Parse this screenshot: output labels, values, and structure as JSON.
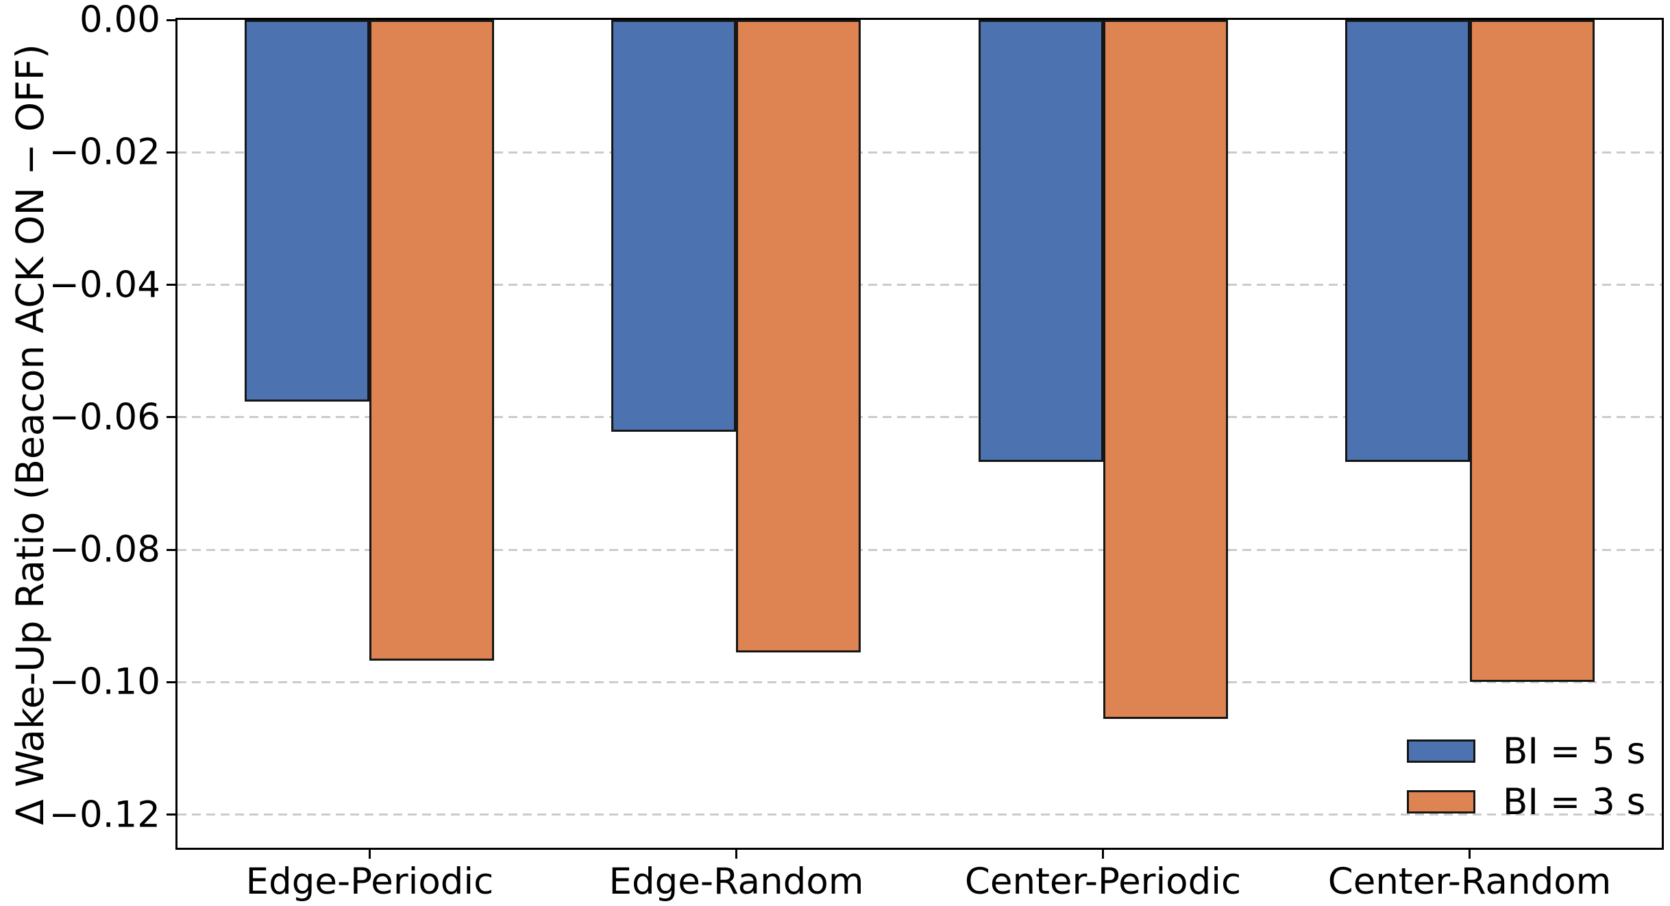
{
  "chart_data": {
    "type": "bar",
    "title": "",
    "xlabel": "",
    "ylabel": "Δ Wake-Up Ratio (Beacon ACK ON − OFF)",
    "categories": [
      "Edge-Periodic",
      "Edge-Random",
      "Center-Periodic",
      "Center-Random"
    ],
    "series": [
      {
        "name": "BI = 5 s",
        "color": "#4C72B0",
        "values": [
          -0.0576,
          -0.0622,
          -0.0667,
          -0.0667
        ]
      },
      {
        "name": "BI = 3 s",
        "color": "#DD8452",
        "values": [
          -0.0967,
          -0.0955,
          -0.1055,
          -0.1
        ]
      }
    ],
    "ylim": [
      -0.125,
      0.0
    ],
    "yticks": [
      {
        "value": 0.0,
        "label": "0.00"
      },
      {
        "value": -0.02,
        "label": "−0.02"
      },
      {
        "value": -0.04,
        "label": "−0.04"
      },
      {
        "value": -0.06,
        "label": "−0.06"
      },
      {
        "value": -0.08,
        "label": "−0.08"
      },
      {
        "value": -0.1,
        "label": "−0.10"
      },
      {
        "value": -0.12,
        "label": "−0.12"
      }
    ],
    "grid": "horizontal-dashed",
    "grid_color": "#cbcbcb",
    "spine_color": "#000000",
    "bar_edge_color": "#161616",
    "legend_position": "lower-right",
    "legend_frame": false
  }
}
